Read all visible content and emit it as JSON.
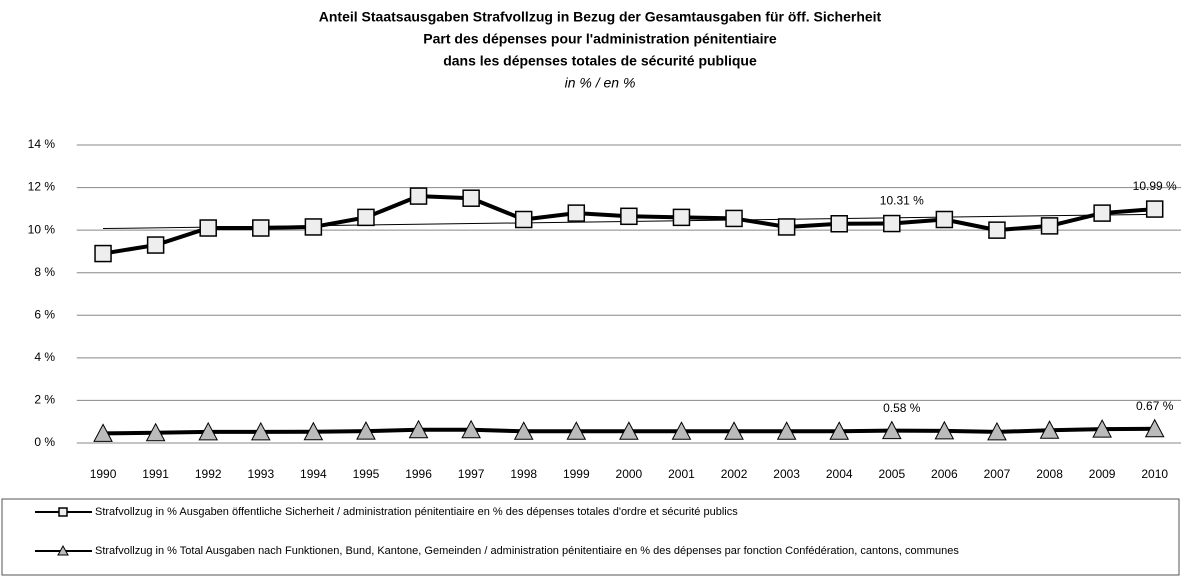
{
  "chart_data": {
    "type": "line",
    "title": [
      "Anteil Staatsausgaben Strafvollzug in Bezug der Gesamtausgaben für öff. Sicherheit",
      "Part des dépenses pour l'administration pénitentiaire",
      "dans les dépenses totales de sécurité publique"
    ],
    "subtitle": "in % / en %",
    "categories": [
      "1990",
      "1991",
      "1992",
      "1993",
      "1994",
      "1995",
      "1996",
      "1997",
      "1998",
      "1999",
      "2000",
      "2001",
      "2002",
      "2003",
      "2004",
      "2005",
      "2006",
      "2007",
      "2008",
      "2009",
      "2010"
    ],
    "series": [
      {
        "name": "Strafvollzug in % Ausgaben öffentliche Sicherheit / administration pénitentiaire en % des dépenses totales d'ordre et sécurité publics",
        "color": "#000000",
        "marker": "square",
        "marker_color": "#eeeeee",
        "trendline": true,
        "values": [
          8.9,
          9.3,
          10.1,
          10.1,
          10.15,
          10.6,
          11.6,
          11.5,
          10.5,
          10.8,
          10.65,
          10.6,
          10.55,
          10.15,
          10.3,
          10.31,
          10.5,
          10.0,
          10.2,
          10.8,
          10.99
        ],
        "value_labels": [
          null,
          null,
          null,
          null,
          null,
          null,
          null,
          null,
          null,
          null,
          null,
          null,
          null,
          null,
          null,
          "10.31 %",
          null,
          null,
          null,
          null,
          "10.99 %"
        ]
      },
      {
        "name": "Strafvollzug in % Total Ausgaben nach Funktionen, Bund, Kantone, Gemeinden / administration pénitentiaire en % des  dépenses par fonction Confédération, cantons, communes",
        "color": "#000000",
        "marker": "triangle",
        "marker_color": "#bbbbbb",
        "trendline": false,
        "values": [
          0.45,
          0.48,
          0.52,
          0.52,
          0.53,
          0.56,
          0.62,
          0.62,
          0.55,
          0.55,
          0.55,
          0.55,
          0.55,
          0.55,
          0.55,
          0.58,
          0.57,
          0.52,
          0.6,
          0.65,
          0.67
        ],
        "value_labels": [
          null,
          null,
          null,
          null,
          null,
          null,
          null,
          null,
          null,
          null,
          null,
          null,
          null,
          null,
          null,
          "0.58 %",
          null,
          null,
          null,
          null,
          "0.67 %"
        ]
      }
    ],
    "ylim": [
      0,
      14
    ],
    "yticks": [
      {
        "value": 0,
        "label": "0 %"
      },
      {
        "value": 2,
        "label": "2 %"
      },
      {
        "value": 4,
        "label": "4 %"
      },
      {
        "value": 6,
        "label": "6 %"
      },
      {
        "value": 8,
        "label": "8 %"
      },
      {
        "value": 10,
        "label": "10 %"
      },
      {
        "value": 12,
        "label": "12 %"
      },
      {
        "value": 14,
        "label": "14 %"
      }
    ],
    "grid": true,
    "legend": "bottom"
  }
}
